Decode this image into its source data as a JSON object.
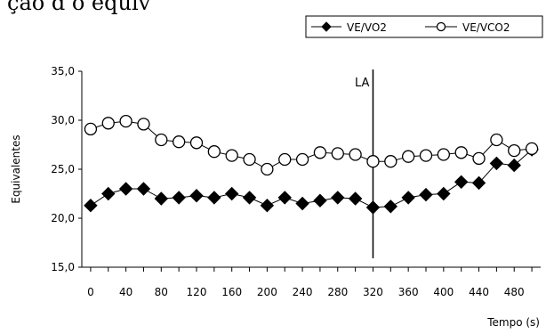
{
  "caption_fragment": "ção d    o equiv",
  "chart_data": {
    "type": "line",
    "title": "",
    "xlabel": "Tempo (s)",
    "ylabel": "Equivalentes",
    "xlim": [
      -10,
      510
    ],
    "ylim": [
      15.0,
      35.0
    ],
    "x_ticks": [
      "0",
      "40",
      "80",
      "120",
      "160",
      "200",
      "240",
      "280",
      "320",
      "360",
      "400",
      "440",
      "480"
    ],
    "y_ticks": [
      "15,0",
      "20,0",
      "25,0",
      "30,0",
      "35,0"
    ],
    "legend_position": "top-right",
    "series": [
      {
        "name": "VE/VO2",
        "marker": "filled-diamond",
        "color": "#000000",
        "x": [
          0,
          20,
          40,
          60,
          80,
          100,
          120,
          140,
          160,
          180,
          200,
          220,
          240,
          260,
          280,
          300,
          320,
          340,
          360,
          380,
          400,
          420,
          440,
          460,
          480,
          500
        ],
        "values": [
          21.3,
          22.5,
          23.0,
          23.0,
          22.0,
          22.1,
          22.3,
          22.1,
          22.5,
          22.1,
          21.3,
          22.1,
          21.5,
          21.8,
          22.1,
          22.0,
          21.1,
          21.2,
          22.1,
          22.4,
          22.5,
          23.7,
          23.6,
          25.6,
          25.4,
          27.0
        ]
      },
      {
        "name": "VE/VCO2",
        "marker": "open-circle",
        "color": "#000000",
        "x": [
          0,
          20,
          40,
          60,
          80,
          100,
          120,
          140,
          160,
          180,
          200,
          220,
          240,
          260,
          280,
          300,
          320,
          340,
          360,
          380,
          400,
          420,
          440,
          460,
          480,
          500
        ],
        "values": [
          29.1,
          29.7,
          29.9,
          29.6,
          28.0,
          27.8,
          27.7,
          26.8,
          26.4,
          26.0,
          25.0,
          26.0,
          26.0,
          26.7,
          26.6,
          26.5,
          25.8,
          25.8,
          26.3,
          26.4,
          26.5,
          26.7,
          26.1,
          28.0,
          26.9,
          27.1
        ]
      }
    ],
    "annotations": [
      {
        "text": "LA",
        "x": 320
      }
    ]
  }
}
